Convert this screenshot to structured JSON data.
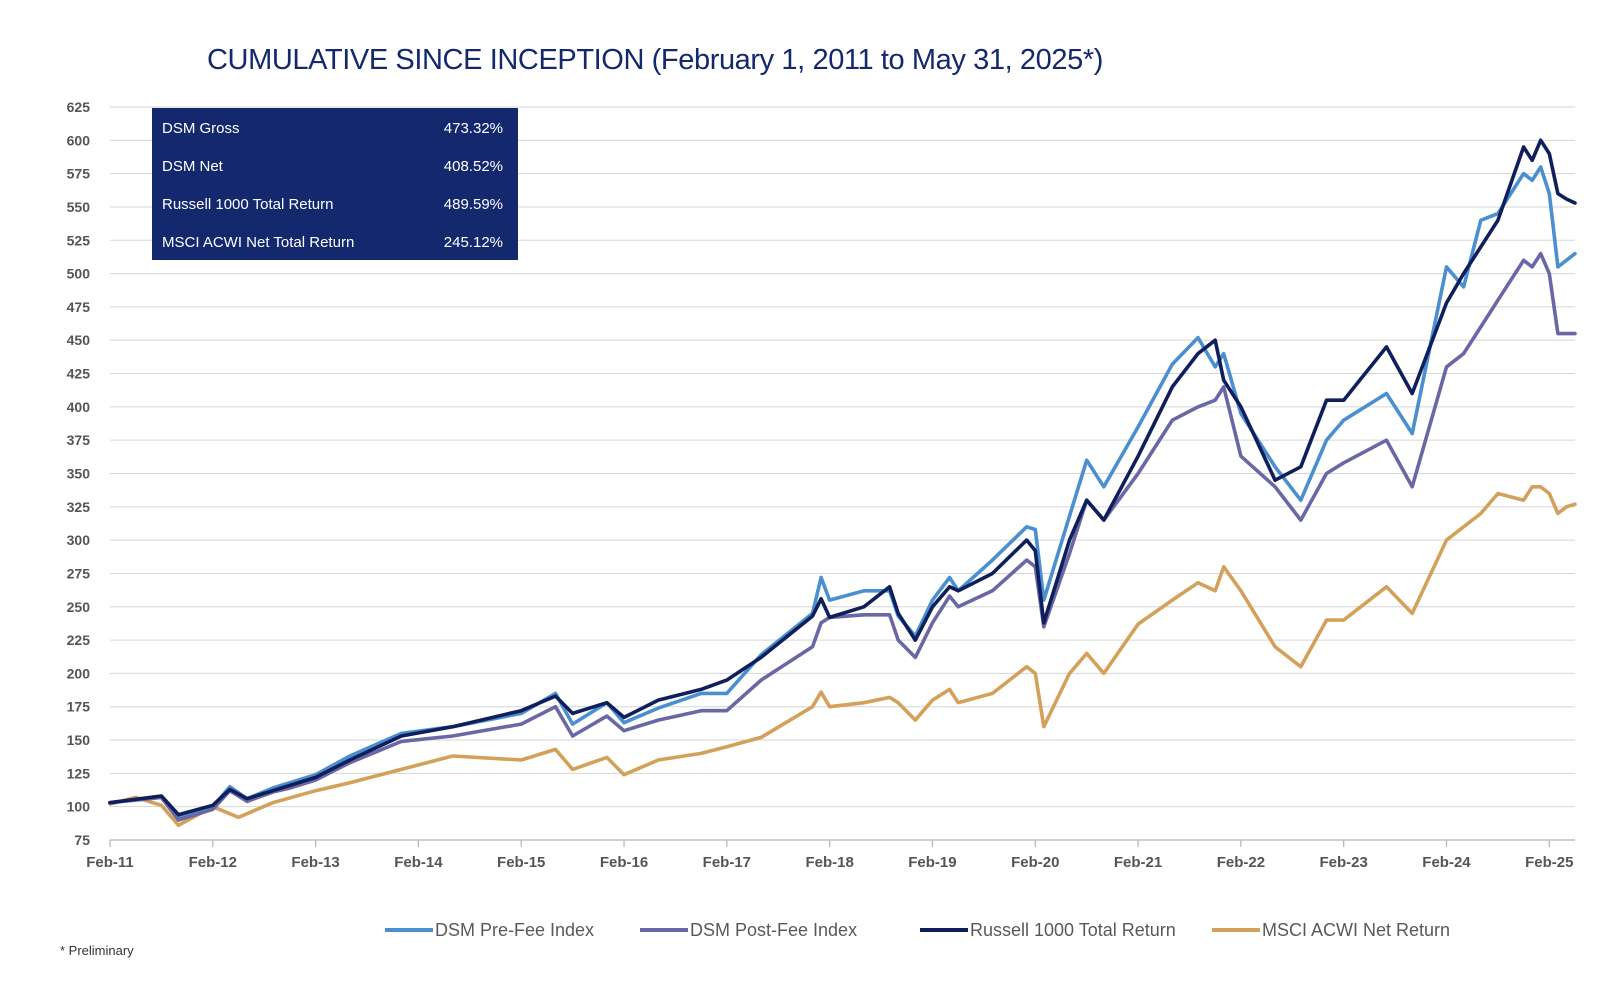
{
  "chart_data": {
    "type": "line",
    "title": "CUMULATIVE SINCE INCEPTION (February 1, 2011 to May 31, 2025*)",
    "xlabel": "",
    "ylabel": "",
    "ylim": [
      75,
      625
    ],
    "yticks": [
      75,
      100,
      125,
      150,
      175,
      200,
      225,
      250,
      275,
      300,
      325,
      350,
      375,
      400,
      425,
      450,
      475,
      500,
      525,
      550,
      575,
      600,
      625
    ],
    "xlim": [
      "2011-02",
      "2025-05"
    ],
    "xticks": [
      "Feb-11",
      "Feb-12",
      "Feb-13",
      "Feb-14",
      "Feb-15",
      "Feb-16",
      "Feb-17",
      "Feb-18",
      "Feb-19",
      "Feb-20",
      "Feb-21",
      "Feb-22",
      "Feb-23",
      "Feb-24",
      "Feb-25"
    ],
    "grid": true,
    "legend_position": "bottom",
    "stats_box": [
      {
        "label": "DSM Gross",
        "value": "473.32%"
      },
      {
        "label": "DSM Net",
        "value": "408.52%"
      },
      {
        "label": "Russell 1000 Total Return",
        "value": "489.59%"
      },
      {
        "label": "MSCI ACWI Net Total Return",
        "value": "245.12%"
      }
    ],
    "series": [
      {
        "name": "DSM Pre-Fee Index",
        "color": "#4a8fd0",
        "x": [
          "2011-02",
          "2011-08",
          "2011-10",
          "2012-02",
          "2012-04",
          "2012-06",
          "2012-09",
          "2012-11",
          "2013-02",
          "2013-06",
          "2013-12",
          "2014-06",
          "2015-02",
          "2015-06",
          "2015-08",
          "2015-12",
          "2016-02",
          "2016-06",
          "2016-11",
          "2017-02",
          "2017-06",
          "2017-12",
          "2018-01",
          "2018-02",
          "2018-06",
          "2018-09",
          "2018-10",
          "2018-12",
          "2019-02",
          "2019-04",
          "2019-05",
          "2019-09",
          "2020-01",
          "2020-02",
          "2020-03",
          "2020-06",
          "2020-08",
          "2020-10",
          "2021-02",
          "2021-06",
          "2021-09",
          "2021-11",
          "2021-12",
          "2022-02",
          "2022-06",
          "2022-09",
          "2022-12",
          "2023-02",
          "2023-07",
          "2023-10",
          "2024-02",
          "2024-04",
          "2024-06",
          "2024-08",
          "2024-11",
          "2024-12",
          "2025-01",
          "2025-02",
          "2025-03",
          "2025-04",
          "2025-05"
        ],
        "values": [
          103,
          108,
          92,
          100,
          115,
          106,
          114,
          118,
          124,
          138,
          155,
          160,
          170,
          185,
          162,
          178,
          163,
          174,
          185,
          185,
          214,
          245,
          272,
          255,
          262,
          262,
          243,
          228,
          255,
          272,
          262,
          285,
          310,
          308,
          255,
          318,
          360,
          340,
          385,
          432,
          452,
          430,
          440,
          395,
          355,
          330,
          375,
          390,
          410,
          380,
          505,
          490,
          540,
          545,
          575,
          570,
          580,
          560,
          505,
          510,
          515
        ]
      },
      {
        "name": "DSM Post-Fee Index",
        "color": "#6a67a6",
        "x": [
          "2011-02",
          "2011-08",
          "2011-10",
          "2012-02",
          "2012-04",
          "2012-06",
          "2012-09",
          "2012-11",
          "2013-02",
          "2013-06",
          "2013-12",
          "2014-06",
          "2015-02",
          "2015-06",
          "2015-08",
          "2015-12",
          "2016-02",
          "2016-06",
          "2016-11",
          "2017-02",
          "2017-06",
          "2017-12",
          "2018-01",
          "2018-02",
          "2018-06",
          "2018-09",
          "2018-10",
          "2018-12",
          "2019-02",
          "2019-04",
          "2019-05",
          "2019-09",
          "2020-01",
          "2020-02",
          "2020-03",
          "2020-06",
          "2020-08",
          "2020-10",
          "2021-02",
          "2021-06",
          "2021-09",
          "2021-11",
          "2021-12",
          "2022-02",
          "2022-06",
          "2022-09",
          "2022-12",
          "2023-02",
          "2023-07",
          "2023-10",
          "2024-02",
          "2024-04",
          "2024-06",
          "2024-08",
          "2024-11",
          "2024-12",
          "2025-01",
          "2025-02",
          "2025-03",
          "2025-04",
          "2025-05"
        ],
        "values": [
          103,
          107,
          90,
          98,
          112,
          104,
          111,
          114,
          120,
          133,
          149,
          153,
          162,
          175,
          153,
          168,
          157,
          165,
          172,
          172,
          195,
          220,
          238,
          242,
          244,
          244,
          225,
          212,
          238,
          258,
          250,
          262,
          285,
          280,
          235,
          290,
          330,
          315,
          350,
          390,
          400,
          405,
          415,
          363,
          340,
          315,
          350,
          358,
          375,
          340,
          430,
          440,
          460,
          480,
          510,
          505,
          515,
          500,
          455,
          455,
          455
        ]
      },
      {
        "name": "Russell 1000 Total Return",
        "color": "#0f1f5c",
        "x": [
          "2011-02",
          "2011-08",
          "2011-10",
          "2012-02",
          "2012-04",
          "2012-06",
          "2012-09",
          "2012-11",
          "2013-02",
          "2013-06",
          "2013-12",
          "2014-06",
          "2015-02",
          "2015-06",
          "2015-08",
          "2015-12",
          "2016-02",
          "2016-06",
          "2016-11",
          "2017-02",
          "2017-06",
          "2017-12",
          "2018-01",
          "2018-02",
          "2018-06",
          "2018-09",
          "2018-10",
          "2018-12",
          "2019-02",
          "2019-04",
          "2019-05",
          "2019-09",
          "2020-01",
          "2020-02",
          "2020-03",
          "2020-06",
          "2020-08",
          "2020-10",
          "2021-02",
          "2021-06",
          "2021-09",
          "2021-11",
          "2021-12",
          "2022-02",
          "2022-06",
          "2022-09",
          "2022-12",
          "2023-02",
          "2023-07",
          "2023-10",
          "2024-02",
          "2024-04",
          "2024-06",
          "2024-08",
          "2024-11",
          "2024-12",
          "2025-01",
          "2025-02",
          "2025-03",
          "2025-04",
          "2025-05"
        ],
        "values": [
          103,
          108,
          94,
          101,
          113,
          106,
          112,
          116,
          122,
          135,
          153,
          160,
          172,
          183,
          170,
          178,
          167,
          180,
          188,
          195,
          212,
          243,
          256,
          242,
          250,
          265,
          245,
          225,
          250,
          265,
          262,
          275,
          300,
          292,
          238,
          300,
          330,
          315,
          363,
          415,
          440,
          450,
          420,
          400,
          345,
          355,
          405,
          405,
          445,
          410,
          478,
          500,
          520,
          540,
          595,
          585,
          600,
          590,
          560,
          556,
          553
        ]
      },
      {
        "name": "MSCI ACWI Net Return",
        "color": "#d4a15a",
        "x": [
          "2011-02",
          "2011-05",
          "2011-08",
          "2011-10",
          "2012-02",
          "2012-05",
          "2012-09",
          "2013-02",
          "2013-06",
          "2013-12",
          "2014-06",
          "2015-02",
          "2015-06",
          "2015-08",
          "2015-12",
          "2016-02",
          "2016-06",
          "2016-11",
          "2017-02",
          "2017-06",
          "2017-12",
          "2018-01",
          "2018-02",
          "2018-06",
          "2018-09",
          "2018-10",
          "2018-12",
          "2019-02",
          "2019-04",
          "2019-05",
          "2019-09",
          "2020-01",
          "2020-02",
          "2020-03",
          "2020-06",
          "2020-08",
          "2020-10",
          "2021-02",
          "2021-06",
          "2021-09",
          "2021-11",
          "2021-12",
          "2022-02",
          "2022-06",
          "2022-09",
          "2022-12",
          "2023-02",
          "2023-07",
          "2023-10",
          "2024-02",
          "2024-06",
          "2024-08",
          "2024-11",
          "2024-12",
          "2025-01",
          "2025-02",
          "2025-03",
          "2025-04",
          "2025-05"
        ],
        "values": [
          102,
          107,
          101,
          86,
          100,
          92,
          103,
          112,
          118,
          128,
          138,
          135,
          143,
          128,
          137,
          124,
          135,
          140,
          145,
          152,
          175,
          186,
          175,
          178,
          182,
          178,
          165,
          180,
          188,
          178,
          185,
          205,
          200,
          160,
          200,
          215,
          200,
          237,
          255,
          268,
          262,
          280,
          262,
          220,
          205,
          240,
          240,
          265,
          245,
          300,
          320,
          335,
          330,
          340,
          340,
          335,
          320,
          325,
          327
        ]
      }
    ]
  },
  "legend": {
    "items": [
      {
        "label": "DSM Pre-Fee Index",
        "color": "#4a8fd0"
      },
      {
        "label": "DSM Post-Fee Index",
        "color": "#6a67a6"
      },
      {
        "label": "Russell 1000 Total Return",
        "color": "#0f1f5c"
      },
      {
        "label": "MSCI ACWI Net Return",
        "color": "#d4a15a"
      }
    ]
  },
  "footnote": "* Preliminary"
}
